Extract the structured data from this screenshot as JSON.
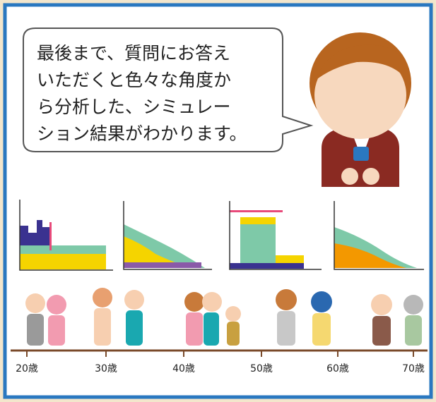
{
  "speech": {
    "lines": [
      "最後まで、質問にお答え",
      "いただくと色々な角度か",
      "ら分析した、シミュレー",
      "ション結果がわかります。"
    ]
  },
  "timeline": {
    "labels": [
      "20歳",
      "30歳",
      "40歳",
      "50歳",
      "60歳",
      "70歳"
    ]
  }
}
